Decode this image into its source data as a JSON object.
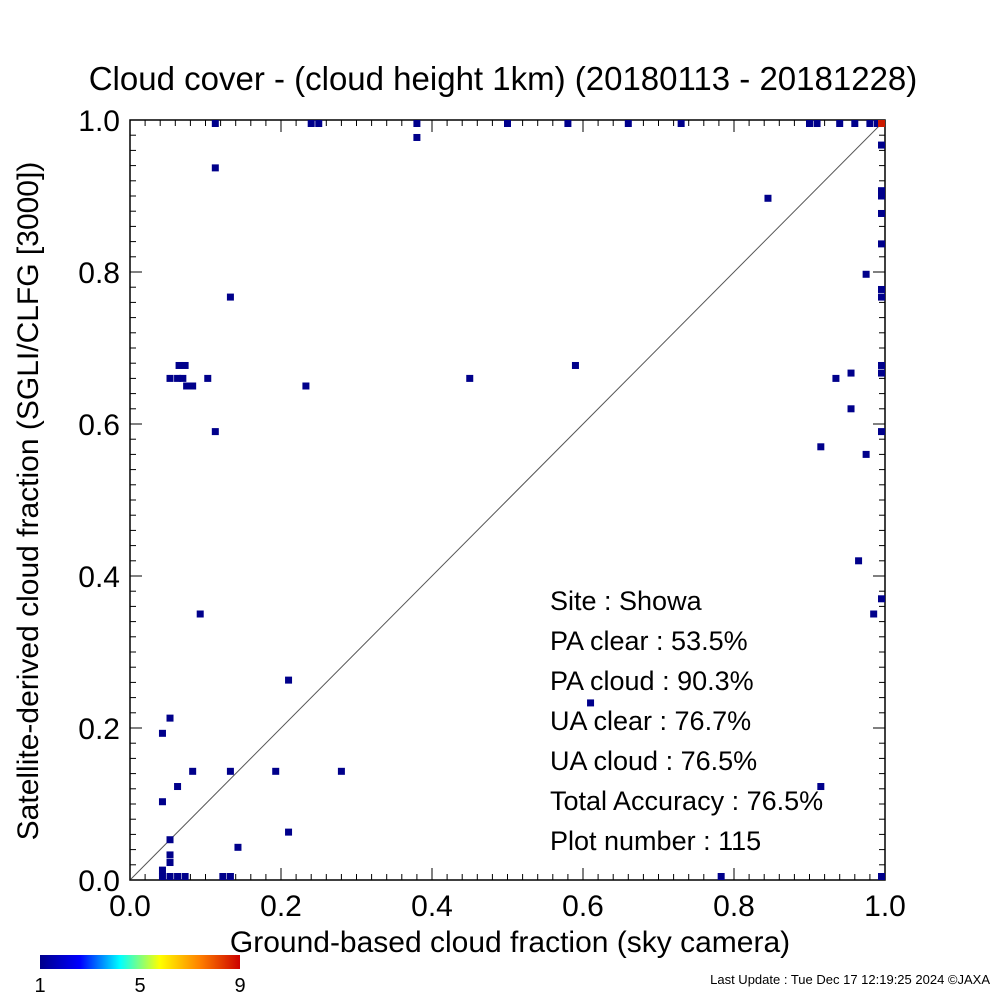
{
  "chart_data": {
    "type": "scatter",
    "title": "Cloud cover - (cloud height 1km)  (20180113 - 20181228)",
    "xlabel": "Ground-based cloud fraction (sky camera)",
    "ylabel": "Satellite-derived cloud fraction (SGLI/CLFG [3000])",
    "xlim": [
      0.0,
      1.0
    ],
    "ylim": [
      0.0,
      1.0
    ],
    "xticks": [
      "0.0",
      "0.2",
      "0.4",
      "0.6",
      "0.8",
      "1.0"
    ],
    "yticks": [
      "0.0",
      "0.2",
      "0.4",
      "0.6",
      "0.8",
      "1.0"
    ],
    "grid": false,
    "reference_line": "1:1 diagonal",
    "points": [
      [
        0.113,
        1.0
      ],
      [
        0.24,
        1.0
      ],
      [
        0.25,
        1.0
      ],
      [
        0.38,
        1.0
      ],
      [
        0.5,
        1.0
      ],
      [
        0.58,
        1.0
      ],
      [
        0.66,
        1.0
      ],
      [
        0.73,
        1.0
      ],
      [
        0.9,
        1.0
      ],
      [
        0.91,
        1.0
      ],
      [
        0.94,
        1.0
      ],
      [
        0.96,
        1.0
      ],
      [
        0.98,
        1.0
      ],
      [
        0.99,
        1.0
      ],
      [
        1.0,
        1.0
      ],
      [
        0.38,
        0.977
      ],
      [
        0.113,
        0.937
      ],
      [
        0.845,
        0.897
      ],
      [
        1.0,
        0.967
      ],
      [
        1.0,
        0.907
      ],
      [
        1.0,
        0.9
      ],
      [
        1.0,
        0.877
      ],
      [
        1.0,
        0.837
      ],
      [
        0.975,
        0.797
      ],
      [
        1.0,
        0.777
      ],
      [
        1.0,
        0.767
      ],
      [
        0.133,
        0.767
      ],
      [
        0.053,
        0.66
      ],
      [
        0.063,
        0.66
      ],
      [
        0.065,
        0.677
      ],
      [
        0.073,
        0.677
      ],
      [
        0.07,
        0.66
      ],
      [
        0.075,
        0.65
      ],
      [
        0.083,
        0.65
      ],
      [
        0.103,
        0.66
      ],
      [
        0.233,
        0.65
      ],
      [
        0.45,
        0.66
      ],
      [
        0.59,
        0.677
      ],
      [
        0.935,
        0.66
      ],
      [
        0.955,
        0.667
      ],
      [
        1.0,
        0.677
      ],
      [
        1.0,
        0.667
      ],
      [
        0.955,
        0.62
      ],
      [
        0.113,
        0.59
      ],
      [
        1.0,
        0.59
      ],
      [
        0.915,
        0.57
      ],
      [
        0.975,
        0.56
      ],
      [
        0.965,
        0.42
      ],
      [
        0.093,
        0.35
      ],
      [
        0.985,
        0.35
      ],
      [
        1.0,
        0.37
      ],
      [
        0.21,
        0.263
      ],
      [
        0.61,
        0.233
      ],
      [
        0.053,
        0.213
      ],
      [
        0.043,
        0.193
      ],
      [
        0.083,
        0.143
      ],
      [
        0.133,
        0.143
      ],
      [
        0.193,
        0.143
      ],
      [
        0.28,
        0.143
      ],
      [
        0.063,
        0.123
      ],
      [
        0.915,
        0.123
      ],
      [
        0.043,
        0.103
      ],
      [
        0.21,
        0.063
      ],
      [
        0.053,
        0.053
      ],
      [
        0.143,
        0.043
      ],
      [
        0.053,
        0.033
      ],
      [
        0.053,
        0.023
      ],
      [
        0.043,
        0.013
      ],
      [
        0.043,
        0.003
      ],
      [
        0.053,
        0.003
      ],
      [
        0.063,
        0.003
      ],
      [
        0.073,
        0.003
      ],
      [
        0.123,
        0.003
      ],
      [
        0.133,
        0.003
      ],
      [
        0.783,
        0.003
      ],
      [
        1.0,
        0.003
      ]
    ],
    "hot_points": [
      [
        1.0,
        1.0
      ]
    ],
    "colorbar": {
      "colors": [
        "#00008b",
        "#0000ff",
        "#00ffff",
        "#ffff00",
        "#ff8000",
        "#cc0000"
      ],
      "labels": [
        "1",
        "5",
        "9"
      ],
      "range": [
        1,
        9
      ]
    },
    "stats": [
      "Site : Showa",
      "PA clear :  53.5%",
      "PA cloud :  90.3%",
      "UA clear :  76.7%",
      "UA cloud :  76.5%",
      "Total Accuracy :  76.5%",
      "Plot number :       115"
    ],
    "point_color": "#00008b",
    "hot_color": "#cc1a00"
  },
  "footer": "Last Update : Tue Dec 17 12:19:25 2024  ©JAXA"
}
